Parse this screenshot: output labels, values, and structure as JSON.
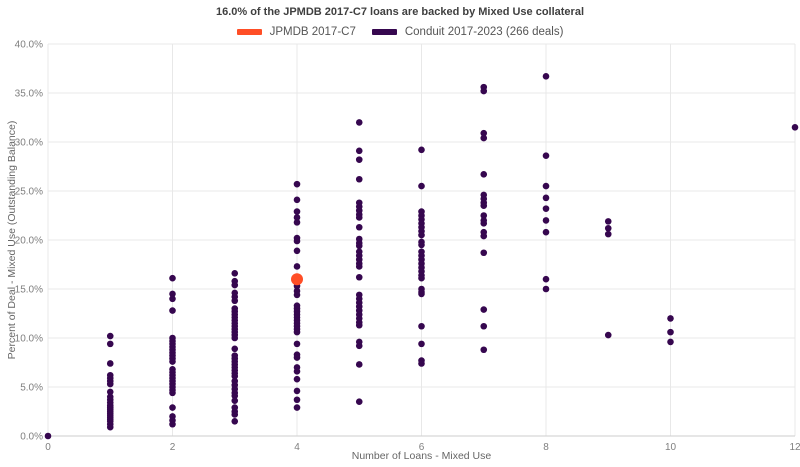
{
  "title": "16.0% of the JPMDB 2017-C7 loans are backed by Mixed Use collateral",
  "legend": [
    {
      "label": "JPMDB 2017-C7",
      "color": "#ff4e26"
    },
    {
      "label": "Conduit 2017-2023 (266 deals)",
      "color": "#36074f"
    }
  ],
  "chart_data": {
    "type": "scatter",
    "title": "16.0% of the JPMDB 2017-C7 loans are backed by Mixed Use collateral",
    "xlabel": "Number of Loans - Mixed Use",
    "ylabel": "Percent of Deal - Mixed Use (Outstanding Balance)",
    "xlim": [
      0,
      12
    ],
    "ylim": [
      0,
      40
    ],
    "grid": true,
    "legend_position": "top-center",
    "x_ticks": [
      0,
      2,
      4,
      6,
      8,
      10,
      12
    ],
    "y_ticks": [
      0,
      5,
      10,
      15,
      20,
      25,
      30,
      35,
      40
    ],
    "y_tick_labels": [
      "0.0%",
      "5.0%",
      "10.0%",
      "15.0%",
      "20.0%",
      "25.0%",
      "30.0%",
      "35.0%",
      "40.0%"
    ],
    "colors": {
      "grid": "#e8e8e8",
      "axis": "#cecece",
      "tick_text": "#7f7f7f"
    },
    "series": [
      {
        "name": "JPMDB 2017-C7",
        "color": "#ff4e26",
        "marker_size": 6,
        "points": [
          [
            4,
            16.0
          ]
        ]
      },
      {
        "name": "Conduit 2017-2023 (266 deals)",
        "color": "#36074f",
        "marker_size": 3.3,
        "points": [
          [
            0,
            0.0
          ],
          [
            1,
            10.2
          ],
          [
            1,
            9.4
          ],
          [
            1,
            7.4
          ],
          [
            1,
            6.2
          ],
          [
            1,
            5.9
          ],
          [
            1,
            5.6
          ],
          [
            1,
            5.3
          ],
          [
            1,
            4.5
          ],
          [
            1,
            4.0
          ],
          [
            1,
            3.7
          ],
          [
            1,
            3.4
          ],
          [
            1,
            3.1
          ],
          [
            1,
            2.9
          ],
          [
            1,
            2.7
          ],
          [
            1,
            2.5
          ],
          [
            1,
            2.3
          ],
          [
            1,
            2.1
          ],
          [
            1,
            1.9
          ],
          [
            1,
            1.7
          ],
          [
            1,
            1.5
          ],
          [
            1,
            1.2
          ],
          [
            1,
            0.9
          ],
          [
            2,
            16.1
          ],
          [
            2,
            14.5
          ],
          [
            2,
            14.0
          ],
          [
            2,
            12.8
          ],
          [
            2,
            10.0
          ],
          [
            2,
            9.7
          ],
          [
            2,
            9.4
          ],
          [
            2,
            9.1
          ],
          [
            2,
            8.8
          ],
          [
            2,
            8.5
          ],
          [
            2,
            8.2
          ],
          [
            2,
            7.9
          ],
          [
            2,
            7.6
          ],
          [
            2,
            6.8
          ],
          [
            2,
            6.5
          ],
          [
            2,
            6.2
          ],
          [
            2,
            5.9
          ],
          [
            2,
            5.6
          ],
          [
            2,
            5.3
          ],
          [
            2,
            5.0
          ],
          [
            2,
            4.7
          ],
          [
            2,
            4.4
          ],
          [
            2,
            2.9
          ],
          [
            2,
            2.0
          ],
          [
            2,
            1.6
          ],
          [
            2,
            1.2
          ],
          [
            3,
            16.6
          ],
          [
            3,
            15.8
          ],
          [
            3,
            15.4
          ],
          [
            3,
            14.6
          ],
          [
            3,
            14.2
          ],
          [
            3,
            13.8
          ],
          [
            3,
            13.0
          ],
          [
            3,
            12.7
          ],
          [
            3,
            12.4
          ],
          [
            3,
            12.1
          ],
          [
            3,
            11.8
          ],
          [
            3,
            11.5
          ],
          [
            3,
            11.2
          ],
          [
            3,
            10.9
          ],
          [
            3,
            10.6
          ],
          [
            3,
            10.3
          ],
          [
            3,
            10.0
          ],
          [
            3,
            8.9
          ],
          [
            3,
            8.2
          ],
          [
            3,
            7.9
          ],
          [
            3,
            7.6
          ],
          [
            3,
            7.3
          ],
          [
            3,
            7.0
          ],
          [
            3,
            6.7
          ],
          [
            3,
            6.4
          ],
          [
            3,
            6.1
          ],
          [
            3,
            5.6
          ],
          [
            3,
            5.2
          ],
          [
            3,
            4.8
          ],
          [
            3,
            4.4
          ],
          [
            3,
            4.1
          ],
          [
            3,
            3.6
          ],
          [
            3,
            2.9
          ],
          [
            3,
            2.5
          ],
          [
            3,
            2.2
          ],
          [
            3,
            1.5
          ],
          [
            4,
            25.7
          ],
          [
            4,
            24.1
          ],
          [
            4,
            22.9
          ],
          [
            4,
            22.3
          ],
          [
            4,
            21.8
          ],
          [
            4,
            20.2
          ],
          [
            4,
            19.9
          ],
          [
            4,
            18.9
          ],
          [
            4,
            17.3
          ],
          [
            4,
            16.2
          ],
          [
            4,
            15.3
          ],
          [
            4,
            14.8
          ],
          [
            4,
            14.4
          ],
          [
            4,
            13.3
          ],
          [
            4,
            13.0
          ],
          [
            4,
            12.7
          ],
          [
            4,
            12.4
          ],
          [
            4,
            12.1
          ],
          [
            4,
            11.8
          ],
          [
            4,
            11.5
          ],
          [
            4,
            11.2
          ],
          [
            4,
            10.9
          ],
          [
            4,
            10.6
          ],
          [
            4,
            9.4
          ],
          [
            4,
            8.3
          ],
          [
            4,
            8.0
          ],
          [
            4,
            7.0
          ],
          [
            4,
            6.6
          ],
          [
            4,
            5.8
          ],
          [
            4,
            4.6
          ],
          [
            4,
            3.7
          ],
          [
            4,
            2.9
          ],
          [
            5,
            32.0
          ],
          [
            5,
            29.1
          ],
          [
            5,
            28.2
          ],
          [
            5,
            26.2
          ],
          [
            5,
            23.8
          ],
          [
            5,
            23.4
          ],
          [
            5,
            23.0
          ],
          [
            5,
            22.6
          ],
          [
            5,
            22.3
          ],
          [
            5,
            21.3
          ],
          [
            5,
            20.1
          ],
          [
            5,
            19.7
          ],
          [
            5,
            19.4
          ],
          [
            5,
            18.8
          ],
          [
            5,
            18.4
          ],
          [
            5,
            18.0
          ],
          [
            5,
            17.6
          ],
          [
            5,
            17.3
          ],
          [
            5,
            16.2
          ],
          [
            5,
            14.4
          ],
          [
            5,
            14.0
          ],
          [
            5,
            13.6
          ],
          [
            5,
            13.2
          ],
          [
            5,
            12.8
          ],
          [
            5,
            12.4
          ],
          [
            5,
            12.0
          ],
          [
            5,
            11.6
          ],
          [
            5,
            11.3
          ],
          [
            5,
            9.6
          ],
          [
            5,
            9.2
          ],
          [
            5,
            7.3
          ],
          [
            5,
            3.5
          ],
          [
            6,
            29.2
          ],
          [
            6,
            25.5
          ],
          [
            6,
            22.9
          ],
          [
            6,
            22.5
          ],
          [
            6,
            22.1
          ],
          [
            6,
            21.7
          ],
          [
            6,
            21.3
          ],
          [
            6,
            20.9
          ],
          [
            6,
            20.5
          ],
          [
            6,
            19.8
          ],
          [
            6,
            19.5
          ],
          [
            6,
            18.8
          ],
          [
            6,
            18.4
          ],
          [
            6,
            18.0
          ],
          [
            6,
            17.6
          ],
          [
            6,
            17.2
          ],
          [
            6,
            16.8
          ],
          [
            6,
            16.4
          ],
          [
            6,
            16.1
          ],
          [
            6,
            15.0
          ],
          [
            6,
            14.7
          ],
          [
            6,
            14.5
          ],
          [
            6,
            11.2
          ],
          [
            6,
            9.4
          ],
          [
            6,
            7.7
          ],
          [
            6,
            7.4
          ],
          [
            7,
            35.6
          ],
          [
            7,
            35.2
          ],
          [
            7,
            30.9
          ],
          [
            7,
            30.4
          ],
          [
            7,
            26.7
          ],
          [
            7,
            24.6
          ],
          [
            7,
            24.2
          ],
          [
            7,
            23.8
          ],
          [
            7,
            23.5
          ],
          [
            7,
            22.5
          ],
          [
            7,
            22.0
          ],
          [
            7,
            21.7
          ],
          [
            7,
            20.8
          ],
          [
            7,
            20.4
          ],
          [
            7,
            18.7
          ],
          [
            7,
            12.9
          ],
          [
            7,
            11.2
          ],
          [
            7,
            8.8
          ],
          [
            8,
            36.7
          ],
          [
            8,
            28.6
          ],
          [
            8,
            25.5
          ],
          [
            8,
            24.3
          ],
          [
            8,
            23.2
          ],
          [
            8,
            22.0
          ],
          [
            8,
            20.8
          ],
          [
            8,
            16.0
          ],
          [
            8,
            15.0
          ],
          [
            9,
            21.9
          ],
          [
            9,
            21.2
          ],
          [
            9,
            20.6
          ],
          [
            9,
            10.3
          ],
          [
            10,
            12.0
          ],
          [
            10,
            10.6
          ],
          [
            10,
            9.6
          ],
          [
            12,
            31.5
          ]
        ]
      }
    ]
  }
}
